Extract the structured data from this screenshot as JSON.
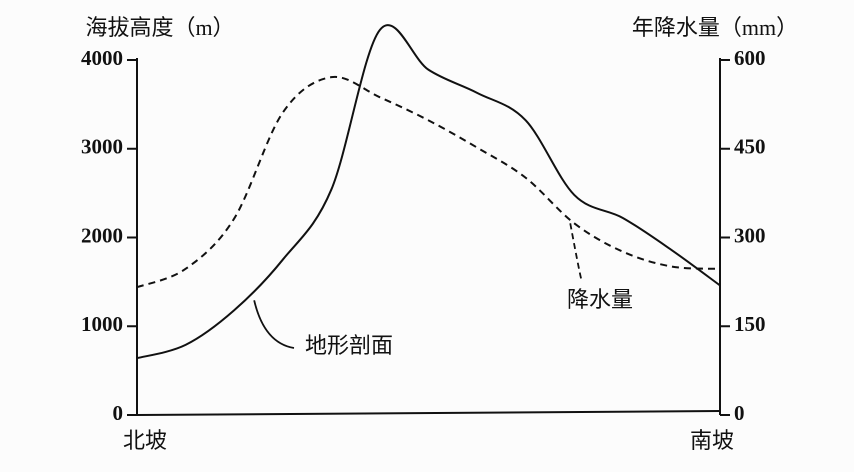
{
  "chart_data": {
    "type": "line",
    "y_label": "海拔高度（m）",
    "y2_label": "年降水量（mm）",
    "categories": [
      "北坡",
      null,
      null,
      null,
      null,
      null,
      null,
      null,
      null,
      null,
      null,
      null,
      "南坡"
    ],
    "series": [
      {
        "name": "地形剖面",
        "color": "#111111",
        "style": "solid",
        "axis": "y",
        "values": [
          640,
          790,
          1180,
          1750,
          2540,
          4340,
          3890,
          3630,
          3320,
          2480,
          2220,
          1860,
          1460
        ]
      },
      {
        "name": "降水量",
        "color": "#111111",
        "style": "dashed",
        "axis": "y2",
        "values": [
          216,
          247,
          332,
          511,
          571,
          537,
          498,
          452,
          401,
          324,
          276,
          251,
          247
        ]
      }
    ],
    "ylim": [
      0,
      4000
    ],
    "yticks": [
      0,
      1000,
      2000,
      3000,
      4000
    ],
    "y2lim": [
      0,
      600
    ],
    "y2ticks": [
      0,
      150,
      300,
      450,
      600
    ],
    "grid": false
  }
}
